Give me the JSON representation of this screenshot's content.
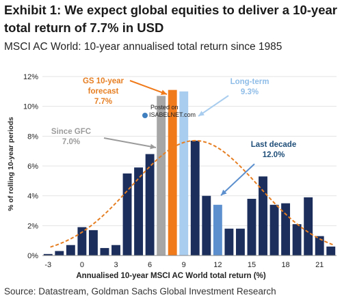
{
  "title": "Exhibit 1: We expect global equities to deliver a 10-year total return of 7.7% in USD",
  "subtitle": "MSCI AC World: 10-year annualised total return since 1985",
  "source": "Source: Datastream, Goldman Sachs Global Investment Research",
  "watermark": {
    "line1": "Posted on",
    "line2": "ISABELNET.com"
  },
  "annotations": {
    "gs_forecast": {
      "line1": "GS 10-year",
      "line2": "forecast",
      "value": "7.7%"
    },
    "long_term": {
      "line1": "Long-term",
      "value": "9.3%"
    },
    "since_gfc": {
      "line1": "Since GFC",
      "value": "7.0%"
    },
    "last_decade": {
      "line1": "Last decade",
      "value": "12.0%"
    }
  },
  "colors": {
    "navy": "#1c2f5c",
    "gray": "#a6a6a6",
    "orange": "#f07a1a",
    "light_blue": "#a9cdee",
    "mid_blue": "#5b8fce",
    "curve": "#e67e22"
  },
  "chart_data": {
    "type": "bar",
    "xlabel": "Annualised 10-year MSCI AC World total return (%)",
    "ylabel": "% of rolling 10-year periods",
    "ylim": [
      0,
      12
    ],
    "yticks": [
      "0%",
      "2%",
      "4%",
      "6%",
      "8%",
      "10%",
      "12%"
    ],
    "xticks": [
      "-3",
      "0",
      "3",
      "6",
      "9",
      "12",
      "15",
      "18",
      "21"
    ],
    "x": [
      -3,
      -2,
      -1,
      0,
      1,
      2,
      3,
      4,
      5,
      6,
      7,
      8,
      9,
      10,
      11,
      12,
      13,
      14,
      15,
      16,
      17,
      18,
      19,
      20,
      21,
      22
    ],
    "values": [
      0.1,
      0.3,
      0.7,
      1.9,
      1.7,
      0.5,
      0.7,
      5.5,
      5.9,
      6.8,
      10.7,
      11.1,
      11.0,
      7.7,
      4.0,
      3.4,
      1.8,
      1.8,
      3.8,
      5.3,
      3.4,
      3.5,
      2.1,
      3.9,
      1.3,
      0.6
    ],
    "bar_colors": [
      "navy",
      "navy",
      "navy",
      "navy",
      "navy",
      "navy",
      "navy",
      "navy",
      "navy",
      "navy",
      "gray",
      "orange",
      "light_blue",
      "navy",
      "navy",
      "mid_blue",
      "navy",
      "navy",
      "navy",
      "navy",
      "navy",
      "navy",
      "navy",
      "navy",
      "navy",
      "navy"
    ],
    "fitted_curve": {
      "style": "dashed",
      "peak_x": 10,
      "peak_y": 7.7
    },
    "grid": true
  }
}
